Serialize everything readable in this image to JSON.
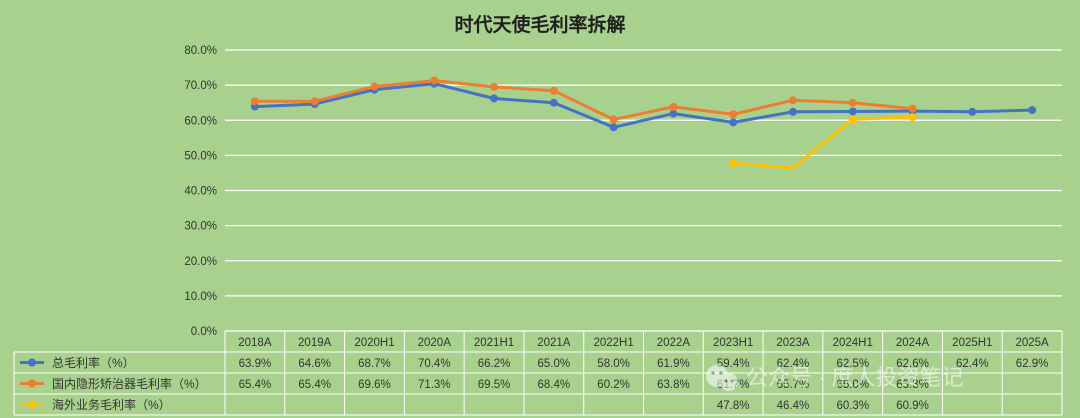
{
  "chart_data": {
    "type": "line",
    "title": "时代天使毛利率拆解",
    "categories": [
      "2018A",
      "2019A",
      "2020H1",
      "2020A",
      "2021H1",
      "2021A",
      "2022H1",
      "2022A",
      "2023H1",
      "2023A",
      "2024H1",
      "2024A",
      "2025H1",
      "2025A"
    ],
    "y_ticks": [
      "0.0%",
      "10.0%",
      "20.0%",
      "30.0%",
      "40.0%",
      "50.0%",
      "60.0%",
      "70.0%",
      "80.0%"
    ],
    "ylim": [
      0,
      80
    ],
    "grid": true,
    "legend": "data-table",
    "series": [
      {
        "name": "总毛利率（%）",
        "color": "#4472c4",
        "values": [
          63.9,
          64.6,
          68.7,
          70.4,
          66.2,
          65.0,
          58.0,
          61.9,
          59.4,
          62.4,
          62.5,
          62.6,
          62.4,
          62.9
        ],
        "labels": [
          "63.9%",
          "64.6%",
          "68.7%",
          "70.4%",
          "66.2%",
          "65.0%",
          "58.0%",
          "61.9%",
          "59.4%",
          "62.4%",
          "62.5%",
          "62.6%",
          "62.4%",
          "62.9%"
        ],
        "markers": [
          true,
          true,
          true,
          true,
          true,
          true,
          true,
          true,
          true,
          true,
          true,
          true,
          true,
          true
        ]
      },
      {
        "name": "国内隐形矫治器毛利率（%）",
        "color": "#ed7d31",
        "values": [
          65.4,
          65.4,
          69.6,
          71.3,
          69.5,
          68.4,
          60.2,
          63.8,
          61.7,
          65.7,
          65.0,
          63.3,
          null,
          null
        ],
        "labels": [
          "65.4%",
          "65.4%",
          "69.6%",
          "71.3%",
          "69.5%",
          "68.4%",
          "60.2%",
          "63.8%",
          "61.7%",
          "65.7%",
          "65.0%",
          "63.3%",
          "",
          ""
        ],
        "markers": [
          true,
          true,
          true,
          true,
          true,
          true,
          true,
          true,
          true,
          true,
          true,
          true,
          false,
          false
        ]
      },
      {
        "name": "海外业务毛利率（%）",
        "color": "#ffc000",
        "values": [
          null,
          null,
          null,
          null,
          null,
          null,
          null,
          null,
          47.8,
          46.4,
          60.3,
          60.9,
          null,
          null
        ],
        "labels": [
          "",
          "",
          "",
          "",
          "",
          "",
          "",
          "",
          "47.8%",
          "46.4%",
          "60.3%",
          "60.9%",
          "",
          ""
        ],
        "markers": [
          false,
          false,
          false,
          false,
          false,
          false,
          false,
          false,
          true,
          false,
          true,
          true,
          false,
          false
        ]
      }
    ]
  },
  "watermark": {
    "icon": "wechat-icon",
    "text": "公众号 · 庶人投资笔记"
  }
}
